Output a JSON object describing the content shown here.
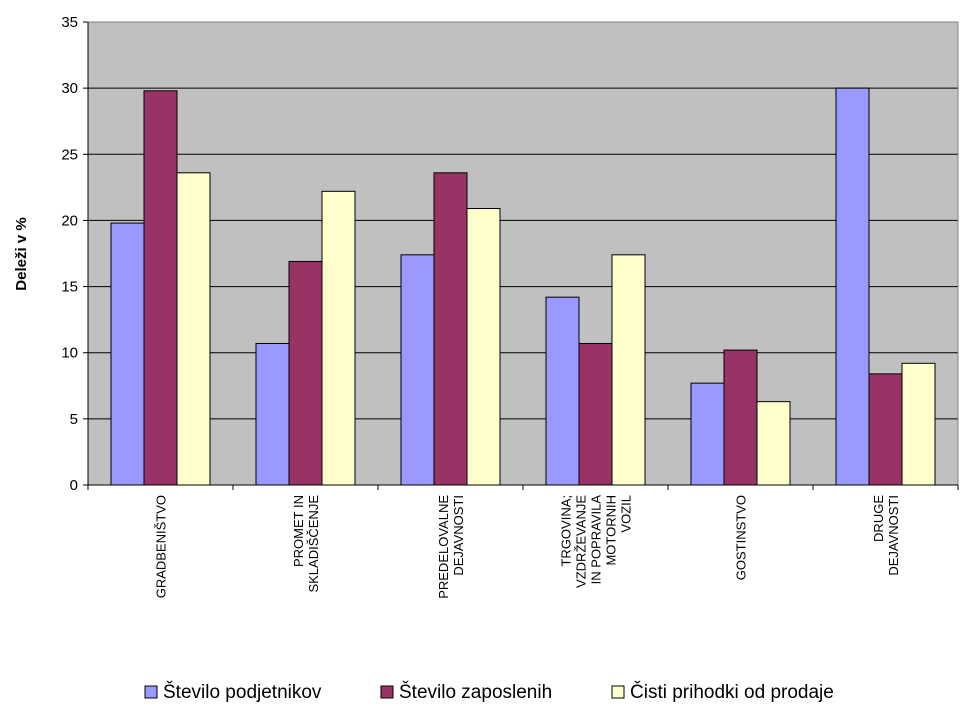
{
  "chart_data": {
    "type": "bar",
    "title": "",
    "xlabel": "",
    "ylabel": "Deleži v %",
    "ylim": [
      0,
      35
    ],
    "yticks": [
      0,
      5,
      10,
      15,
      20,
      25,
      30,
      35
    ],
    "grid": true,
    "legend_position": "bottom",
    "categories": [
      [
        "GRADBENIŠTVO"
      ],
      [
        "PROMET IN",
        "SKLADIŠČENJE"
      ],
      [
        "PREDELOVALNE",
        "DEJAVNOSTI"
      ],
      [
        "TRGOVINA;",
        "VZDRŽEVANJE",
        "IN POPRAVILA",
        "MOTORNIH",
        "VOZIL"
      ],
      [
        "GOSTINSTVO"
      ],
      [
        "DRUGE",
        "DEJAVNOSTI"
      ]
    ],
    "series": [
      {
        "name": "Število podjetnikov",
        "color": "#9999ff",
        "values": [
          19.8,
          10.7,
          17.4,
          14.2,
          7.7,
          30.0
        ]
      },
      {
        "name": "Število zaposlenih",
        "color": "#993366",
        "values": [
          29.8,
          16.9,
          23.6,
          10.7,
          10.2,
          8.4
        ]
      },
      {
        "name": "Čisti prihodki od prodaje",
        "color": "#ffffcc",
        "values": [
          23.6,
          22.2,
          20.9,
          17.4,
          6.3,
          9.2
        ]
      }
    ],
    "colors": {
      "plot_background": "#c0c0c0",
      "gridline": "#000000",
      "bar_outline": "#000000"
    }
  }
}
